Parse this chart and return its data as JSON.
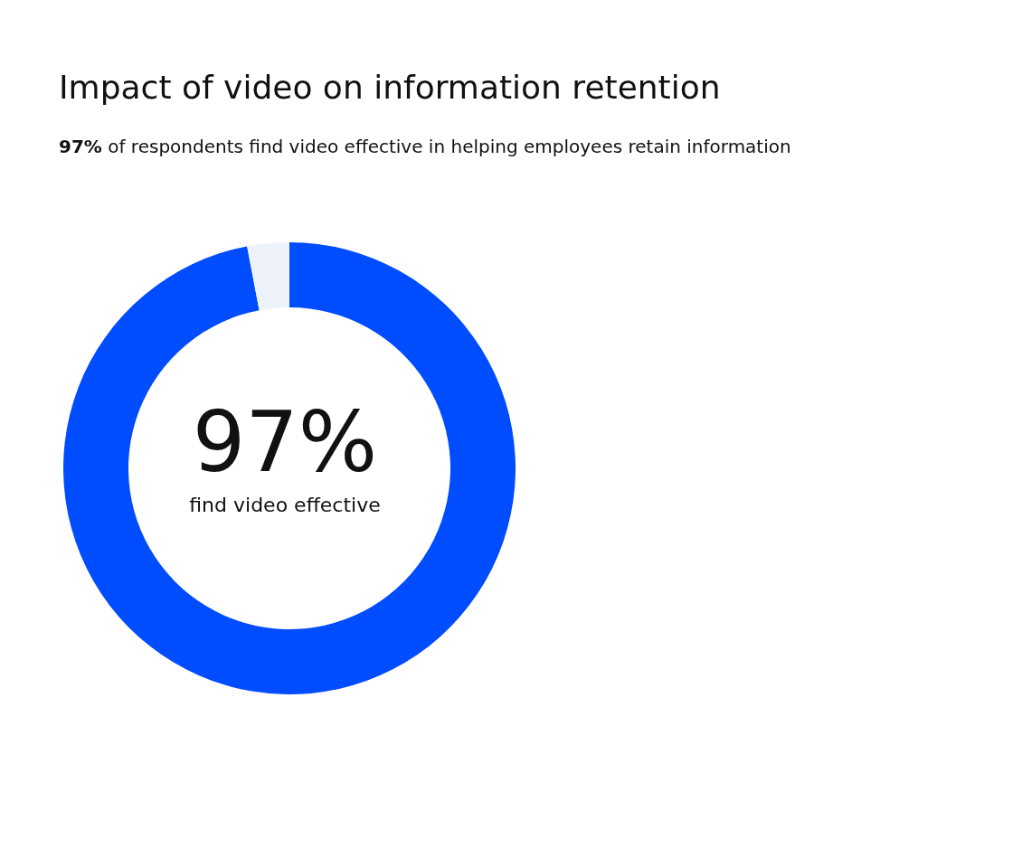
{
  "chart_data": {
    "type": "donut",
    "title": "Impact of video on information retention",
    "subtitle": "97% of respondents find video effective in helping employees retain information",
    "categories": [
      null,
      null
    ],
    "values": [
      97,
      3
    ],
    "colors": [
      "#004cff",
      "#eef2fb"
    ],
    "annotations": [
      "97%",
      "find video effective"
    ],
    "legend": false
  }
}
